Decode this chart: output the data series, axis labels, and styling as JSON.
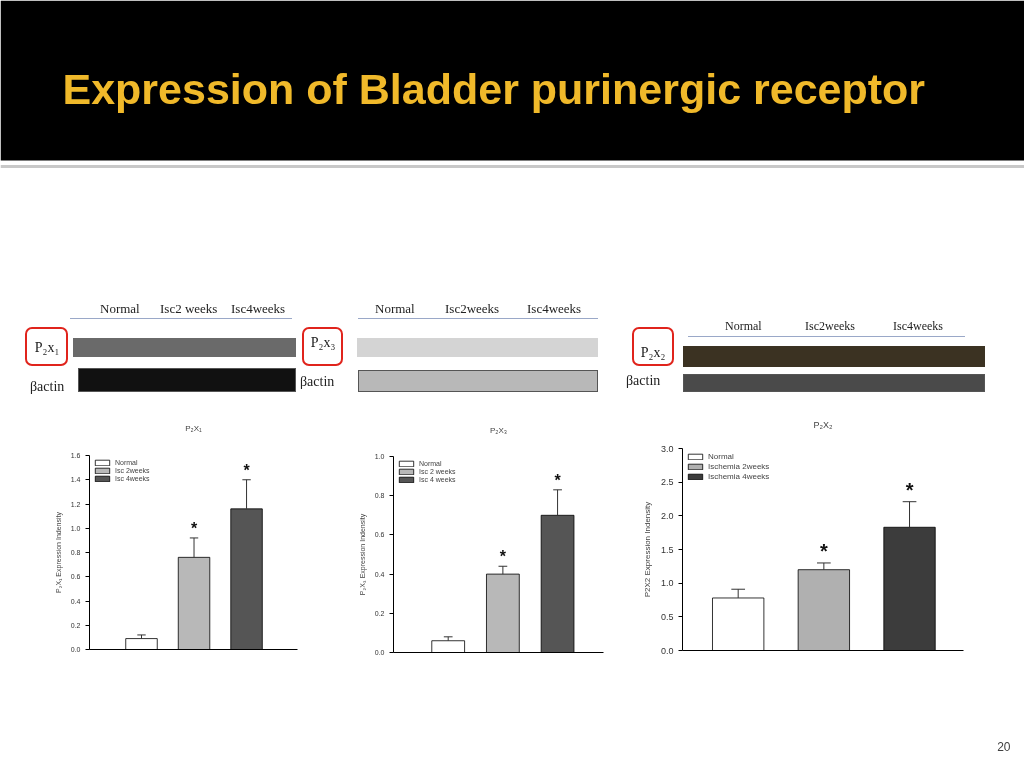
{
  "chart_data": [
    {
      "type": "other",
      "title": "Expression of Bladder purinergic receptor",
      "annotations": [
        "20"
      ]
    },
    {
      "type": "bar",
      "title": "P₂X₁",
      "ylabel": "P₂X₁ Expression Indensity",
      "categories": [
        null,
        null,
        null
      ],
      "series": [
        {
          "name": "Normal",
          "color": "#ffffff",
          "values": [
            0.09,
            null,
            null
          ],
          "errors": [
            [
              0.09,
              0.12
            ],
            null,
            null
          ]
        },
        {
          "name": "Isc 2weeks",
          "color": "#b8b8b8",
          "values": [
            null,
            0.76,
            null
          ],
          "errors": [
            null,
            [
              0.76,
              0.92
            ],
            null
          ],
          "value_labels": [
            null,
            "*",
            null
          ]
        },
        {
          "name": "Isc 4weeks",
          "color": "#555555",
          "values": [
            null,
            null,
            1.16
          ],
          "errors": [
            null,
            null,
            [
              1.16,
              1.4
            ]
          ],
          "value_labels": [
            null,
            null,
            "*"
          ]
        }
      ],
      "ylim": [
        0,
        1.6
      ],
      "yticks": [
        {
          "value": 0,
          "label": "0.0"
        },
        0.2,
        0.4,
        0.6,
        0.8,
        {
          "value": 1,
          "label": "1.0"
        },
        1.2,
        1.4,
        1.6
      ],
      "legend": "top left",
      "tick_labels": "y",
      "annotations": [
        "Normal",
        "Isc2 weeks",
        "Isc4weeks",
        "P₂x₁",
        "βactin"
      ]
    },
    {
      "type": "bar",
      "title": "P₂X₃",
      "ylabel": "P₂X₃ Expression Indensity",
      "categories": [
        null,
        null,
        null
      ],
      "series": [
        {
          "name": "Normal",
          "color": "#ffffff",
          "values": [
            0.06,
            null,
            null
          ],
          "errors": [
            [
              0.06,
              0.08
            ],
            null,
            null
          ]
        },
        {
          "name": "Isc 2 weeks",
          "color": "#b8b8b8",
          "values": [
            null,
            0.4,
            null
          ],
          "errors": [
            null,
            [
              0.4,
              0.44
            ],
            null
          ],
          "value_labels": [
            null,
            "*",
            null
          ]
        },
        {
          "name": "Isc 4 weeks",
          "color": "#555555",
          "values": [
            null,
            null,
            0.7
          ],
          "errors": [
            null,
            null,
            [
              0.7,
              0.83
            ]
          ],
          "value_labels": [
            null,
            null,
            "*"
          ]
        }
      ],
      "ylim": [
        0,
        1
      ],
      "yticks": [
        {
          "value": 0,
          "label": "0.0"
        },
        0.2,
        0.4,
        0.6,
        0.8,
        {
          "value": 1,
          "label": "1.0"
        }
      ],
      "legend": "top left",
      "tick_labels": "y",
      "annotations": [
        "Normal",
        "Isc2weeks",
        "Isc4weeks",
        "P₂x₃",
        "βactin"
      ]
    },
    {
      "type": "bar",
      "title": "P₂X₂",
      "ylabel": "P2X2 Expression Indensity",
      "categories": [
        null,
        null,
        null
      ],
      "series": [
        {
          "name": "Normal",
          "color": "#ffffff",
          "values": [
            0.78,
            null,
            null
          ],
          "errors": [
            [
              0.78,
              0.91
            ],
            null,
            null
          ]
        },
        {
          "name": "Ischemia 2weeks",
          "color": "#b0b0b0",
          "values": [
            null,
            1.2,
            null
          ],
          "errors": [
            null,
            [
              1.2,
              1.3
            ],
            null
          ],
          "value_labels": [
            null,
            "*",
            null
          ]
        },
        {
          "name": "Ischemia 4weeks",
          "color": "#3c3c3c",
          "values": [
            null,
            null,
            1.83
          ],
          "errors": [
            null,
            null,
            [
              1.83,
              2.21
            ]
          ],
          "value_labels": [
            null,
            null,
            "*"
          ]
        }
      ],
      "ylim": [
        0,
        3
      ],
      "yticks": [
        {
          "value": 0,
          "label": "0.0"
        },
        0.5,
        {
          "value": 1,
          "label": "1.0"
        },
        1.5,
        {
          "value": 2,
          "label": "2.0"
        },
        2.5,
        {
          "value": 3,
          "label": "3.0"
        }
      ],
      "legend": "top left",
      "tick_labels": "y",
      "annotations": [
        "Normal",
        "Isc2weeks",
        "Isc4weeks",
        "P₂x₂",
        "βactin"
      ]
    }
  ]
}
